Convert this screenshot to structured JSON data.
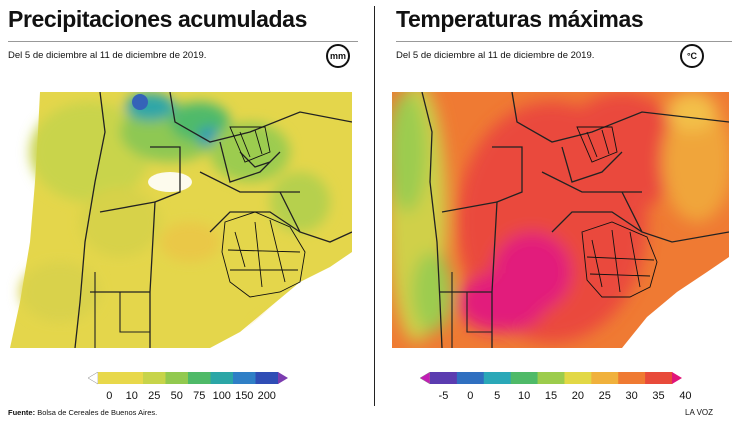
{
  "left_panel": {
    "title": "Precipitaciones acumuladas",
    "subtitle": "Del 5 de diciembre al 11 de diciembre de 2019.",
    "unit": "mm",
    "legend": {
      "labels": [
        "0",
        "10",
        "25",
        "50",
        "75",
        "100",
        "150",
        "200"
      ],
      "colors": [
        "#ffffff",
        "#e8d84a",
        "#e8d84a",
        "#c7d44a",
        "#92c94f",
        "#4fba68",
        "#2ba6a6",
        "#2f7fc6",
        "#2f4db5",
        "#7b3cb0"
      ]
    },
    "source_label": "Fuente:",
    "source_text": "Bolsa de Cereales de Buenos Aires."
  },
  "right_panel": {
    "title": "Temperaturas máximas",
    "subtitle": "Del 5 de diciembre al 11 de diciembre de 2019.",
    "unit": "°C",
    "legend": {
      "labels": [
        "-5",
        "0",
        "5",
        "10",
        "15",
        "20",
        "25",
        "30",
        "35",
        "40"
      ],
      "colors": [
        "#c21db5",
        "#5b3cb0",
        "#2f6fc0",
        "#2aa8b8",
        "#4fba68",
        "#9ccc4c",
        "#e2d845",
        "#f0b13c",
        "#ef7a32",
        "#e84a3a",
        "#e0157a"
      ]
    },
    "credit": "LA VOZ"
  }
}
